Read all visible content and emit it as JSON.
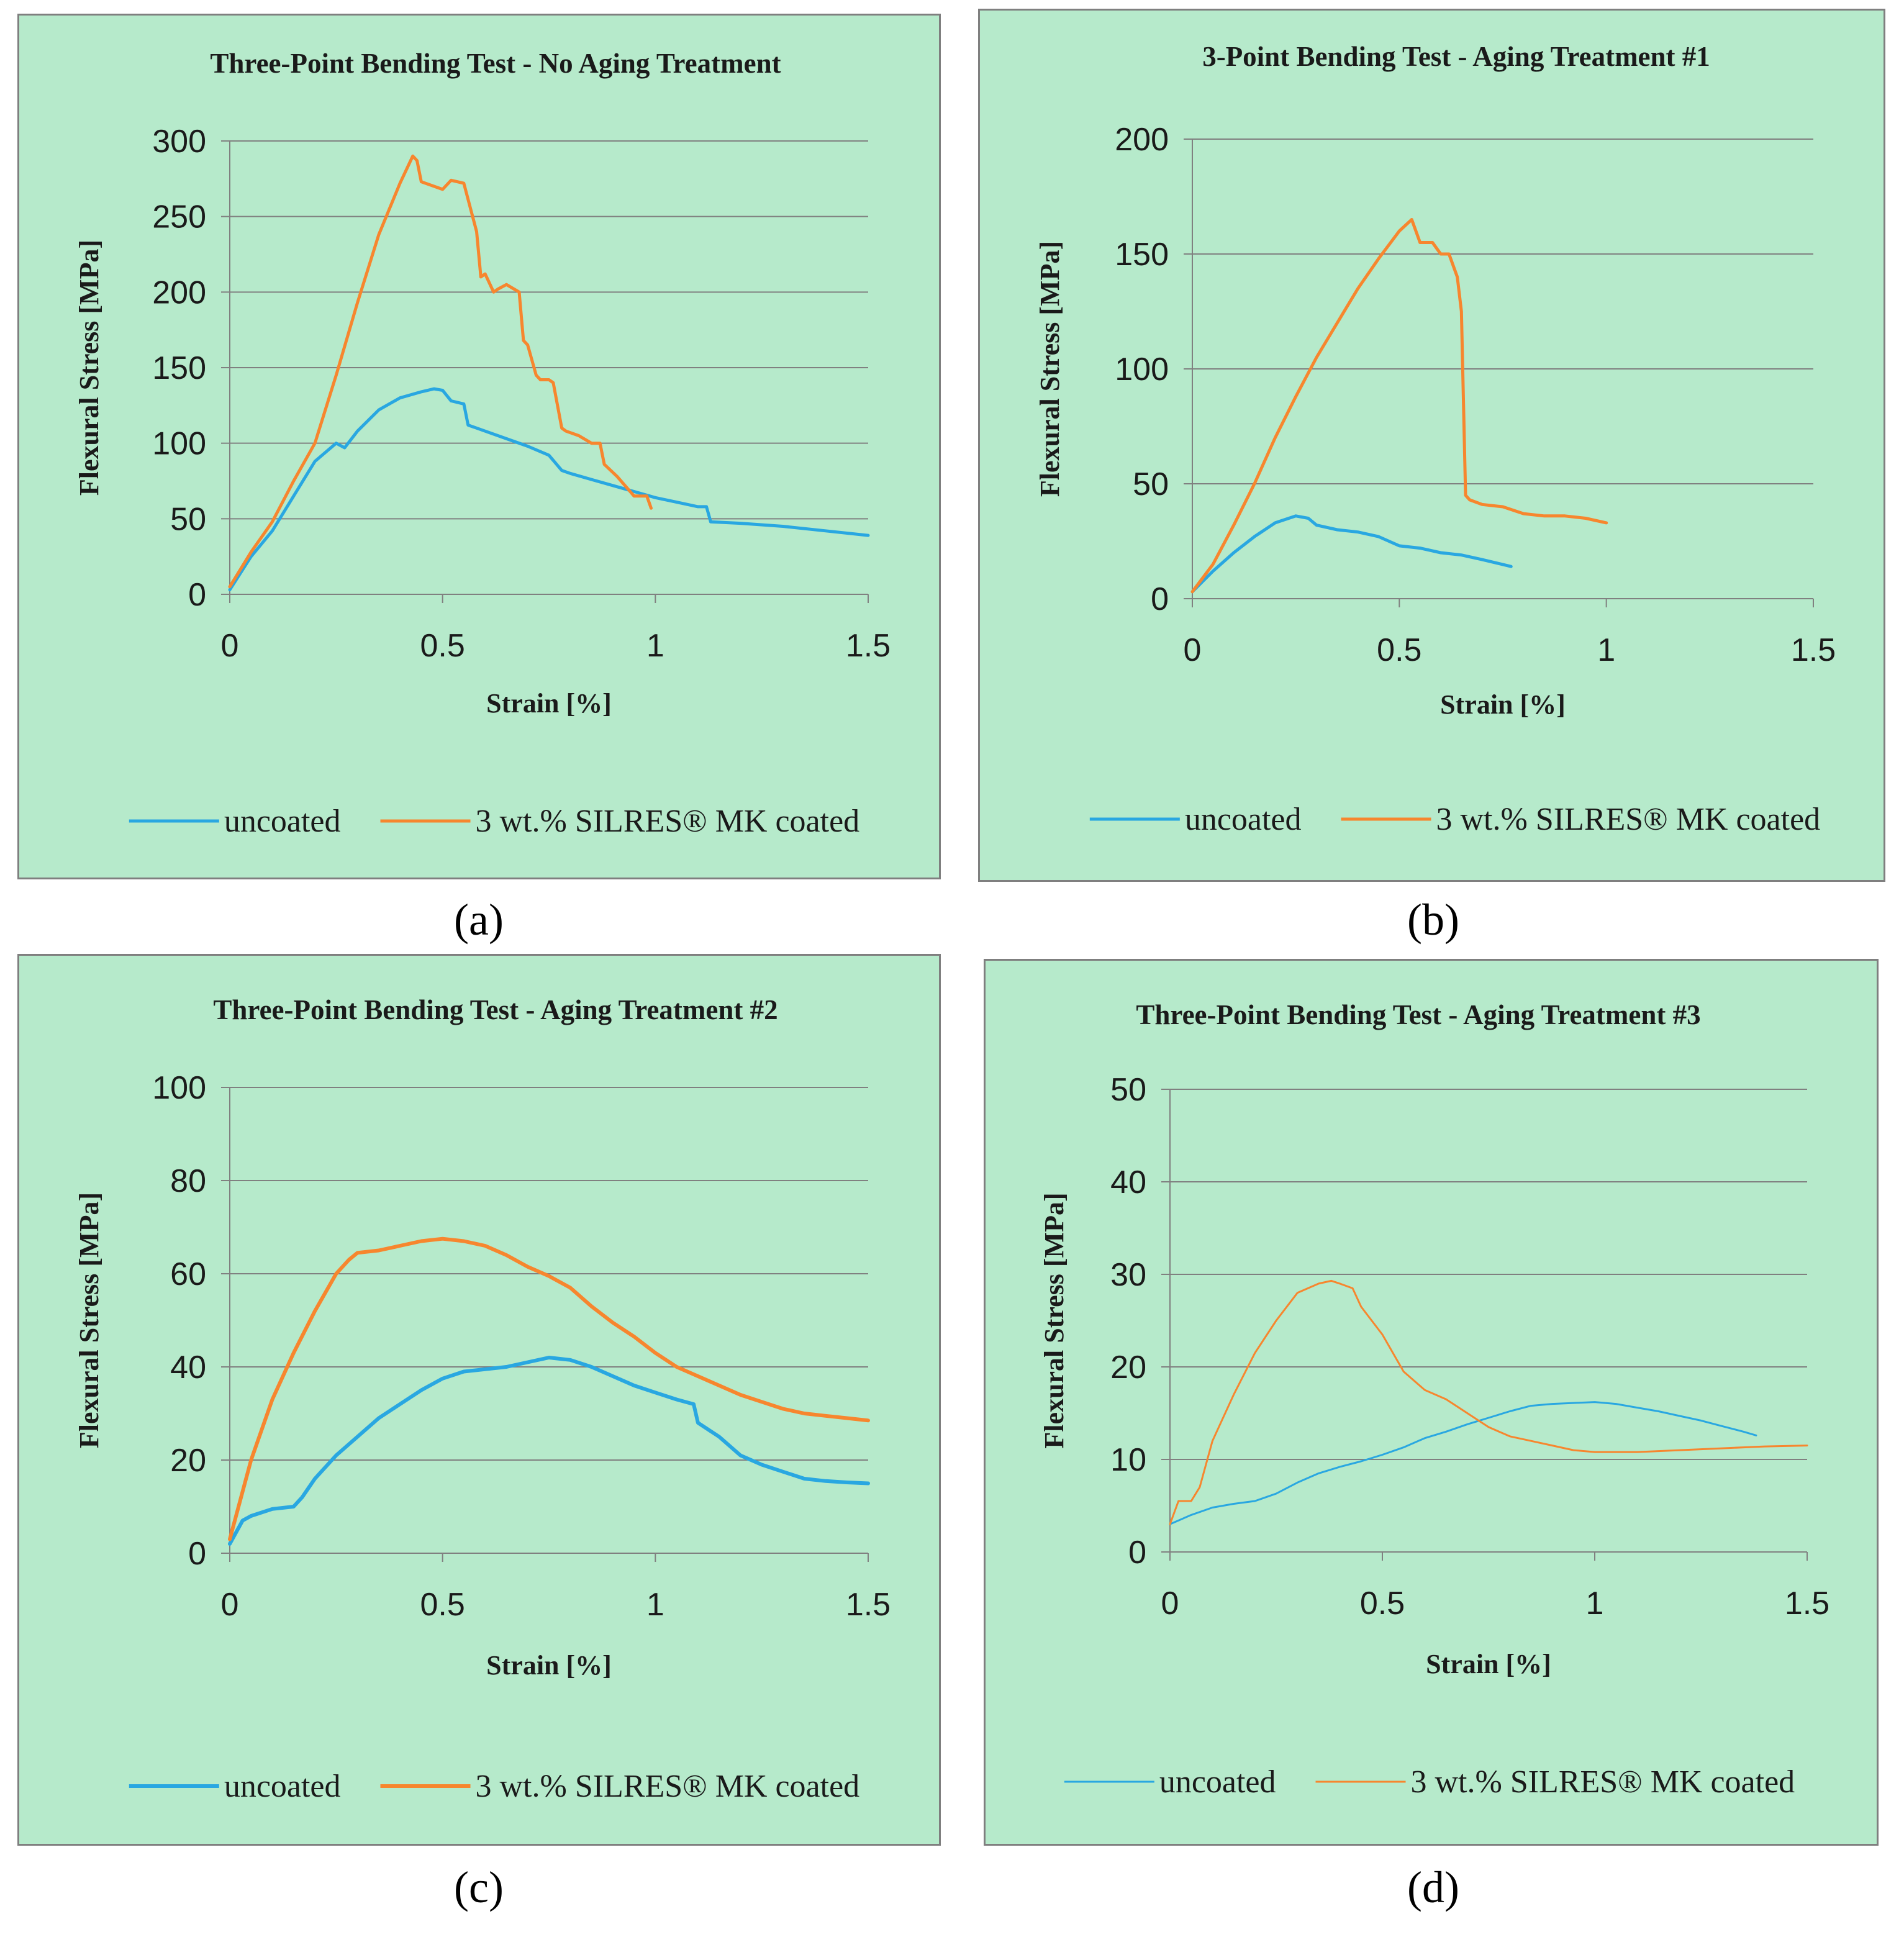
{
  "colors": {
    "uncoated": "#29A7E1",
    "coated": "#F7862E",
    "panel_bg": "#B6EACB",
    "grid": "#808080",
    "frame": "#7f7f7f",
    "text": "#1a1a1a"
  },
  "charts": [
    {
      "caption_letter": "a",
      "caption": "(a)",
      "chart_data": {
        "type": "line",
        "title": "Three-Point Bending Test - No Aging Treatment",
        "xlabel": "Strain [%]",
        "ylabel": "Flexural Stress [MPa]",
        "xlim": [
          0,
          1.5
        ],
        "ylim": [
          0,
          300
        ],
        "xticks": [
          "0",
          "0.5",
          "1",
          "1.5"
        ],
        "yticks": [
          "0",
          "50",
          "100",
          "150",
          "200",
          "250",
          "300"
        ],
        "legend": "bottom",
        "grid": "horizontal",
        "series": [
          {
            "name": "uncoated",
            "x": [
              0,
              0.05,
              0.1,
              0.15,
              0.2,
              0.25,
              0.27,
              0.3,
              0.35,
              0.4,
              0.45,
              0.48,
              0.5,
              0.52,
              0.55,
              0.56,
              0.58,
              0.65,
              0.7,
              0.75,
              0.78,
              0.8,
              0.85,
              0.9,
              0.95,
              1.0,
              1.05,
              1.1,
              1.12,
              1.13,
              1.2,
              1.3,
              1.4,
              1.5
            ],
            "y": [
              3,
              25,
              42,
              65,
              88,
              100,
              97,
              108,
              122,
              130,
              134,
              136,
              135,
              128,
              126,
              112,
              110,
              103,
              98,
              92,
              82,
              80,
              76,
              72,
              68,
              64,
              61,
              58,
              58,
              48,
              47,
              45,
              42,
              39
            ]
          },
          {
            "name": "3 wt.% SILRES® MK coated",
            "x": [
              0,
              0.05,
              0.1,
              0.15,
              0.2,
              0.25,
              0.3,
              0.35,
              0.4,
              0.43,
              0.44,
              0.45,
              0.5,
              0.52,
              0.55,
              0.58,
              0.59,
              0.6,
              0.62,
              0.63,
              0.65,
              0.68,
              0.69,
              0.7,
              0.72,
              0.73,
              0.75,
              0.76,
              0.78,
              0.79,
              0.82,
              0.85,
              0.87,
              0.88,
              0.91,
              0.95,
              0.98,
              0.99
            ],
            "y": [
              5,
              28,
              48,
              75,
              100,
              145,
              193,
              238,
              272,
              290,
              287,
              273,
              268,
              274,
              272,
              240,
              210,
              212,
              200,
              202,
              205,
              200,
              168,
              165,
              145,
              142,
              142,
              140,
              110,
              108,
              105,
              100,
              100,
              86,
              78,
              65,
              65,
              57
            ]
          }
        ]
      }
    },
    {
      "caption_letter": "b",
      "caption": "(b)",
      "chart_data": {
        "type": "line",
        "title": "3-Point Bending Test - Aging Treatment #1",
        "xlabel": "Strain [%]",
        "ylabel": "Flexural Stress [MPa]",
        "xlim": [
          0,
          1.5
        ],
        "ylim": [
          0,
          200
        ],
        "xticks": [
          "0",
          "0.5",
          "1",
          "1.5"
        ],
        "yticks": [
          "0",
          "50",
          "100",
          "150",
          "200"
        ],
        "legend": "bottom",
        "grid": "horizontal",
        "series": [
          {
            "name": "uncoated",
            "x": [
              0,
              0.05,
              0.1,
              0.15,
              0.2,
              0.25,
              0.28,
              0.3,
              0.35,
              0.4,
              0.45,
              0.5,
              0.55,
              0.6,
              0.65,
              0.7,
              0.77
            ],
            "y": [
              3,
              12,
              20,
              27,
              33,
              36,
              35,
              32,
              30,
              29,
              27,
              23,
              22,
              20,
              19,
              17,
              14
            ]
          },
          {
            "name": "3 wt.% SILRES® MK coated",
            "x": [
              0,
              0.05,
              0.1,
              0.15,
              0.2,
              0.25,
              0.3,
              0.35,
              0.4,
              0.45,
              0.5,
              0.53,
              0.55,
              0.58,
              0.6,
              0.62,
              0.64,
              0.65,
              0.66,
              0.67,
              0.7,
              0.75,
              0.8,
              0.85,
              0.9,
              0.95,
              1.0
            ],
            "y": [
              3,
              15,
              32,
              50,
              70,
              88,
              105,
              120,
              135,
              148,
              160,
              165,
              155,
              155,
              150,
              150,
              140,
              125,
              45,
              43,
              41,
              40,
              37,
              36,
              36,
              35,
              33
            ]
          }
        ]
      }
    },
    {
      "caption_letter": "c",
      "caption": "(c)",
      "chart_data": {
        "type": "line",
        "title": "Three-Point Bending Test - Aging Treatment #2",
        "xlabel": "Strain [%]",
        "ylabel": "Flexural Stress [MPa]",
        "xlim": [
          0,
          1.5
        ],
        "ylim": [
          0,
          100
        ],
        "xticks": [
          "0",
          "0.5",
          "1",
          "1.5"
        ],
        "yticks": [
          "0",
          "20",
          "40",
          "60",
          "80",
          "100"
        ],
        "legend": "bottom",
        "grid": "horizontal",
        "series": [
          {
            "name": "uncoated",
            "x": [
              0,
              0.03,
              0.05,
              0.1,
              0.15,
              0.17,
              0.2,
              0.25,
              0.3,
              0.35,
              0.4,
              0.45,
              0.5,
              0.55,
              0.6,
              0.65,
              0.7,
              0.75,
              0.8,
              0.85,
              0.9,
              0.95,
              1.0,
              1.05,
              1.09,
              1.1,
              1.15,
              1.2,
              1.25,
              1.3,
              1.35,
              1.4,
              1.45,
              1.5
            ],
            "y": [
              2,
              7,
              8,
              9.5,
              10,
              12,
              16,
              21,
              25,
              29,
              32,
              35,
              37.5,
              39,
              39.5,
              40,
              41,
              42,
              41.5,
              40,
              38,
              36,
              34.5,
              33,
              32,
              28,
              25,
              21,
              19,
              17.5,
              16,
              15.5,
              15.2,
              15
            ]
          },
          {
            "name": "3 wt.% SILRES® MK coated",
            "x": [
              0,
              0.05,
              0.1,
              0.15,
              0.2,
              0.25,
              0.28,
              0.3,
              0.35,
              0.4,
              0.45,
              0.5,
              0.55,
              0.6,
              0.65,
              0.7,
              0.75,
              0.8,
              0.85,
              0.9,
              0.95,
              1.0,
              1.05,
              1.1,
              1.15,
              1.2,
              1.25,
              1.3,
              1.35,
              1.4,
              1.45,
              1.5
            ],
            "y": [
              3,
              20,
              33,
              43,
              52,
              60,
              63,
              64.5,
              65,
              66,
              67,
              67.5,
              67,
              66,
              64,
              61.5,
              59.5,
              57,
              53,
              49.5,
              46.5,
              43,
              40,
              38,
              36,
              34,
              32.5,
              31,
              30,
              29.5,
              29,
              28.5
            ]
          }
        ]
      }
    },
    {
      "caption_letter": "d",
      "caption": "(d)",
      "chart_data": {
        "type": "line",
        "title": "Three-Point Bending Test - Aging Treatment  #3",
        "xlabel": "Strain [%]",
        "ylabel": "Flexural Stress [MPa]",
        "xlim": [
          0,
          1.5
        ],
        "ylim": [
          0,
          50
        ],
        "xticks": [
          "0",
          "0.5",
          "1",
          "1.5"
        ],
        "yticks": [
          "0",
          "10",
          "20",
          "30",
          "40",
          "50"
        ],
        "legend": "bottom",
        "grid": "horizontal",
        "series": [
          {
            "name": "uncoated",
            "x": [
              0,
              0.05,
              0.1,
              0.15,
              0.2,
              0.25,
              0.3,
              0.35,
              0.4,
              0.45,
              0.5,
              0.55,
              0.6,
              0.65,
              0.7,
              0.75,
              0.8,
              0.85,
              0.9,
              0.95,
              1.0,
              1.05,
              1.1,
              1.15,
              1.2,
              1.25,
              1.3,
              1.35,
              1.38
            ],
            "y": [
              3,
              4,
              4.8,
              5.2,
              5.5,
              6.3,
              7.5,
              8.5,
              9.2,
              9.8,
              10.5,
              11.3,
              12.3,
              13,
              13.8,
              14.5,
              15.2,
              15.8,
              16,
              16.1,
              16.2,
              16,
              15.6,
              15.2,
              14.7,
              14.2,
              13.6,
              13,
              12.6
            ]
          },
          {
            "name": "3 wt.% SILRES® MK coated",
            "x": [
              0,
              0.02,
              0.05,
              0.07,
              0.1,
              0.15,
              0.2,
              0.25,
              0.3,
              0.35,
              0.38,
              0.4,
              0.43,
              0.45,
              0.5,
              0.55,
              0.6,
              0.65,
              0.7,
              0.75,
              0.8,
              0.85,
              0.9,
              0.95,
              1.0,
              1.05,
              1.1,
              1.15,
              1.2,
              1.3,
              1.4,
              1.5
            ],
            "y": [
              3,
              5.5,
              5.5,
              7,
              12,
              17,
              21.5,
              25,
              28,
              29,
              29.3,
              29,
              28.5,
              26.5,
              23.5,
              19.5,
              17.5,
              16.5,
              15,
              13.5,
              12.5,
              12,
              11.5,
              11,
              10.8,
              10.8,
              10.8,
              10.9,
              11,
              11.2,
              11.4,
              11.5
            ]
          }
        ]
      }
    }
  ]
}
